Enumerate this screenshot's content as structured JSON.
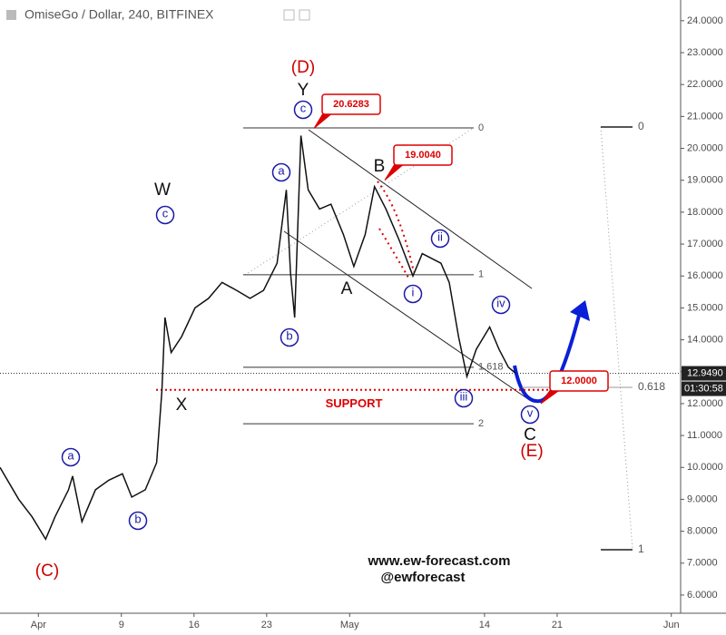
{
  "chart_data": {
    "type": "line",
    "title": "OmiseGo / Dollar, 240, BITFINEX",
    "color": "#111111",
    "x": [
      -3.7,
      -1.9,
      -0.6,
      0.7,
      1.6,
      2.9,
      3.3,
      4.2,
      5.5,
      6.8,
      8.1,
      9.0,
      10.3,
      11.4,
      11.9,
      12.2,
      12.8,
      13.8,
      15.1,
      16.4,
      17.7,
      19.1,
      20.4,
      21.7,
      23.0,
      23.9,
      24.3,
      24.7,
      25.3,
      26.0,
      27.1,
      28.2,
      29.4,
      30.4,
      31.5,
      32.4,
      33.5,
      34.8,
      36.1,
      37.0,
      38.8,
      39.6,
      40.5,
      41.3,
      42.2,
      43.5,
      44.4,
      45.3,
      46.0
    ],
    "values": [
      10.0,
      9.0,
      8.45,
      7.75,
      8.45,
      9.3,
      9.73,
      8.3,
      9.3,
      9.6,
      9.8,
      9.07,
      9.3,
      10.15,
      12.4,
      14.7,
      13.6,
      14.1,
      15.0,
      15.3,
      15.8,
      15.55,
      15.3,
      15.55,
      16.4,
      18.7,
      16.1,
      14.7,
      20.4,
      18.7,
      18.1,
      18.25,
      17.3,
      16.3,
      17.3,
      18.8,
      18.1,
      17.1,
      16.0,
      16.7,
      16.4,
      15.8,
      14.1,
      12.85,
      13.7,
      14.4,
      13.7,
      13.14,
      12.95
    ],
    "xlim": [
      -3.7,
      61.9
    ],
    "ylim": [
      5.43,
      24.65
    ],
    "xticks": [
      {
        "value": 0,
        "label": "Apr"
      },
      {
        "value": 8,
        "label": "9"
      },
      {
        "value": 15,
        "label": "16"
      },
      {
        "value": 22,
        "label": "23"
      },
      {
        "value": 30,
        "label": "May"
      },
      {
        "value": 43,
        "label": "14"
      },
      {
        "value": 50,
        "label": "21"
      },
      {
        "value": 61,
        "label": "Jun"
      }
    ],
    "yticks": [
      {
        "value": 6,
        "label": "6.0000"
      },
      {
        "value": 7,
        "label": "7.0000"
      },
      {
        "value": 8,
        "label": "8.0000"
      },
      {
        "value": 9,
        "label": "9.0000"
      },
      {
        "value": 10,
        "label": "10.0000"
      },
      {
        "value": 11,
        "label": "11.0000"
      },
      {
        "value": 12,
        "label": "12.0000"
      },
      {
        "value": 13,
        "label": "13.0000"
      },
      {
        "value": 14,
        "label": "14.0000"
      },
      {
        "value": 15,
        "label": "15.0000"
      },
      {
        "value": 16,
        "label": "16.0000"
      },
      {
        "value": 17,
        "label": "17.0000"
      },
      {
        "value": 18,
        "label": "18.0000"
      },
      {
        "value": 19,
        "label": "19.0000"
      },
      {
        "value": 20,
        "label": "20.0000"
      },
      {
        "value": 21,
        "label": "21.0000"
      },
      {
        "value": 22,
        "label": "22.0000"
      },
      {
        "value": 23,
        "label": "23.0000"
      },
      {
        "value": 24,
        "label": "24.0000"
      }
    ],
    "last_price": {
      "value": 12.949,
      "label": "12.9490"
    },
    "countdown": "01:30:58",
    "price_callouts": [
      {
        "value": 20.6283,
        "label": "20.6283"
      },
      {
        "value": 19.004,
        "label": "19.0040"
      },
      {
        "value": 12.0,
        "label": "12.0000"
      }
    ],
    "fib_left": [
      {
        "value": 20.64,
        "label": "0"
      },
      {
        "value": 16.04,
        "label": "1"
      },
      {
        "value": 13.14,
        "label": "1.618"
      },
      {
        "value": 11.37,
        "label": "2"
      }
    ],
    "fib_right": [
      {
        "value": 20.67,
        "label": "0"
      },
      {
        "value": 12.51,
        "label": "0.618"
      },
      {
        "value": 7.42,
        "label": "1"
      }
    ],
    "support": {
      "value": 12.43,
      "label": "SUPPORT"
    },
    "wave_labels": [
      "(D)",
      "Y",
      "c",
      "W",
      "c",
      "a",
      "b",
      "B",
      "A",
      "i",
      "ii",
      "iii",
      "iv",
      "v",
      "C",
      "(E)",
      "X",
      "(C)",
      "a",
      "b"
    ],
    "footer": [
      "www.ew-forecast.com",
      "@ewforecast"
    ]
  }
}
